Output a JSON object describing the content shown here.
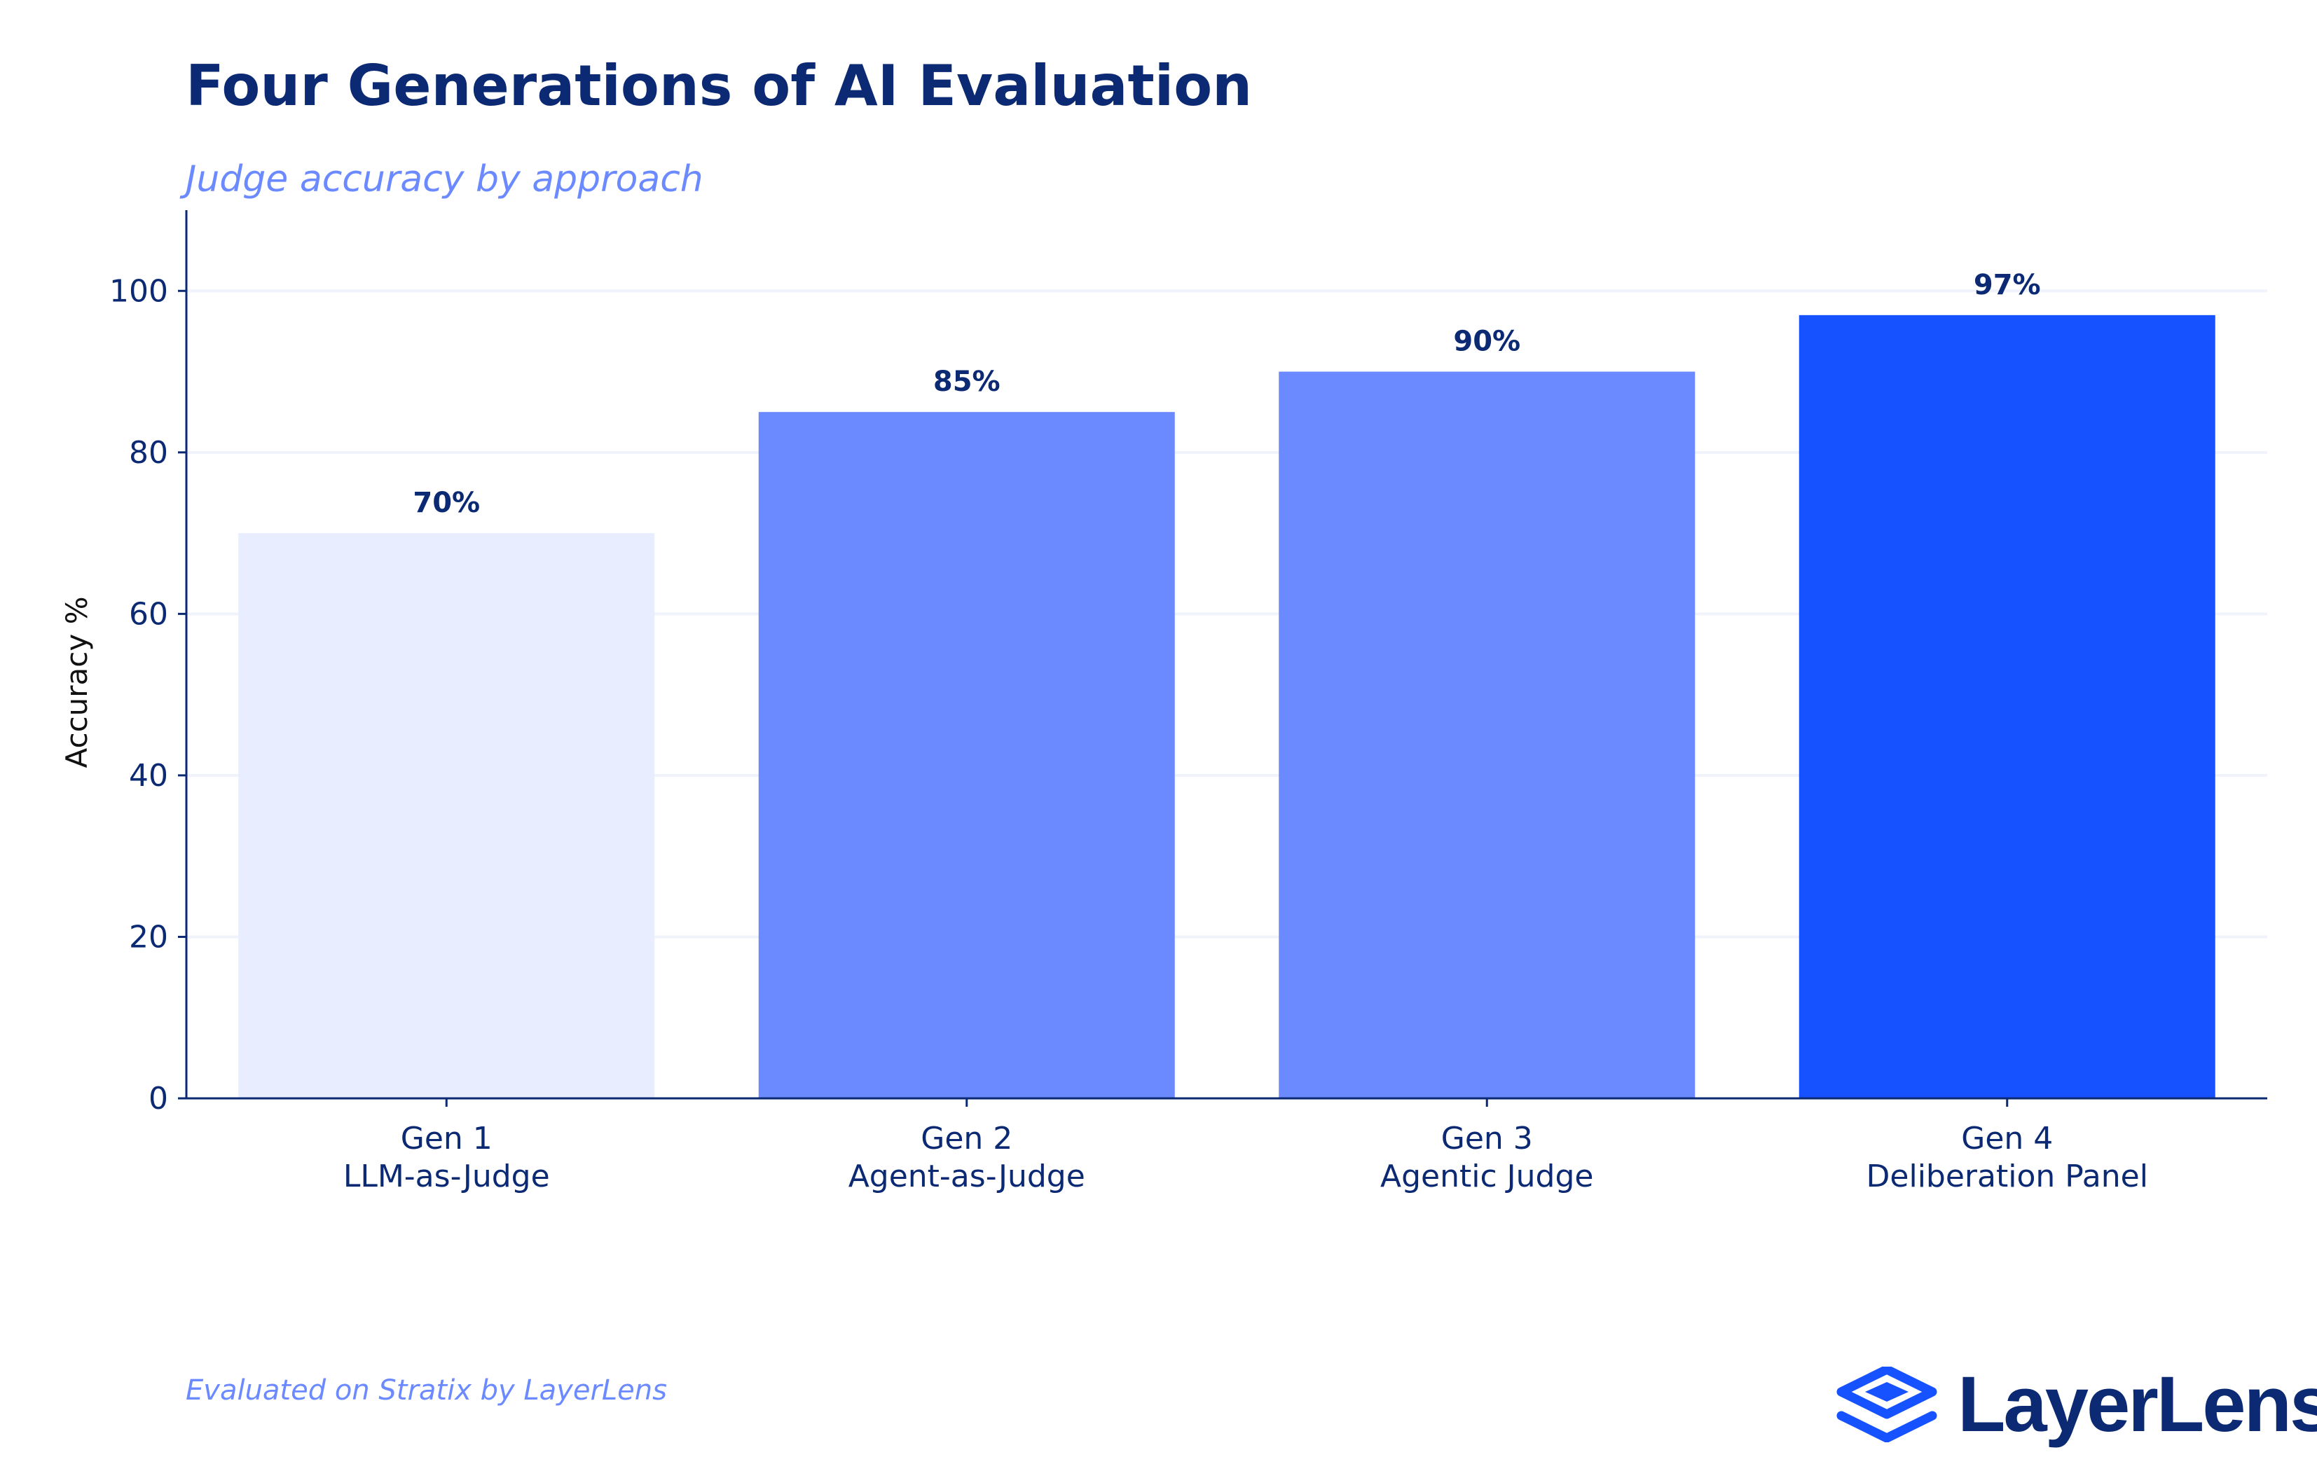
{
  "title": "Four Generations of AI Evaluation",
  "subtitle": "Judge accuracy by approach",
  "footer": "Evaluated on Stratix by LayerLens",
  "logo": {
    "word": "LayerLens",
    "icon": "layered-diamonds-icon",
    "color": "#1652ff"
  },
  "chart_data": {
    "type": "bar",
    "ylabel": "Accuracy %",
    "xlabel": "",
    "ylim": [
      0,
      110
    ],
    "yticks": [
      0,
      20,
      40,
      60,
      80,
      100
    ],
    "grid": true,
    "categories": [
      {
        "line1": "Gen 1",
        "line2": "LLM-as-Judge"
      },
      {
        "line1": "Gen 2",
        "line2": "Agent-as-Judge"
      },
      {
        "line1": "Gen 3",
        "line2": "Agentic Judge"
      },
      {
        "line1": "Gen 4",
        "line2": "Deliberation Panel"
      }
    ],
    "values": [
      70,
      85,
      90,
      97
    ],
    "value_labels": [
      "70%",
      "85%",
      "90%",
      "97%"
    ],
    "colors": [
      "#e8eeff",
      "#6c8aff",
      "#6c8aff",
      "#1652ff"
    ],
    "axis_color": "#0b2a73",
    "grid_color": "#f0f3fb"
  }
}
